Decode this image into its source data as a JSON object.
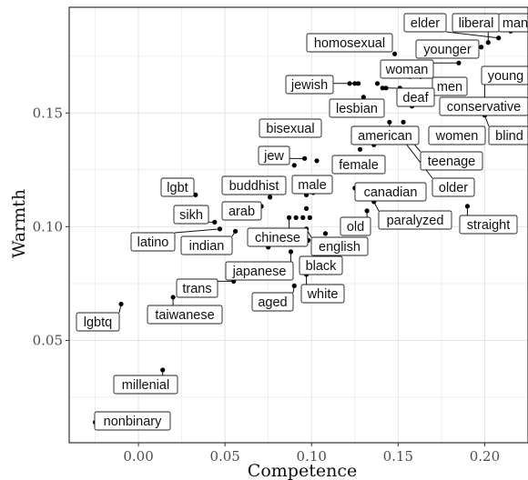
{
  "chart_data": {
    "type": "scatter",
    "title": "",
    "xlabel": "Competence",
    "ylabel": "Warmth",
    "xlim": [
      -0.04,
      0.225
    ],
    "ylim": [
      0.005,
      0.1965
    ],
    "x_ticks": [
      "0.00",
      "0.05",
      "0.10",
      "0.15",
      "0.20"
    ],
    "x_tick_values": [
      0.0,
      0.05,
      0.1,
      0.15,
      0.2
    ],
    "y_ticks": [
      "0.05",
      "0.10",
      "0.15"
    ],
    "y_tick_values": [
      0.05,
      0.1,
      0.15
    ],
    "grid": true,
    "background": "#ffffff",
    "grid_color": "#e5e5e5",
    "panel_border_color": "#333333",
    "point_color": "#000000",
    "points": [
      {
        "label": "elder",
        "x": 0.208,
        "y": 0.183
      },
      {
        "label": "liberal",
        "x": 0.202,
        "y": 0.181
      },
      {
        "label": "man",
        "x": 0.215,
        "y": 0.186
      },
      {
        "label": "homosexual",
        "x": 0.148,
        "y": 0.176
      },
      {
        "label": "younger",
        "x": 0.198,
        "y": 0.179
      },
      {
        "label": "woman",
        "x": 0.185,
        "y": 0.172
      },
      {
        "label": "young",
        "x": 0.212,
        "y": 0.169
      },
      {
        "label": "jewish",
        "x": 0.125,
        "y": 0.163
      },
      {
        "label": "men",
        "x": 0.163,
        "y": 0.166
      },
      {
        "label": "deaf",
        "x": 0.141,
        "y": 0.161
      },
      {
        "label": "lesbian",
        "x": 0.133,
        "y": 0.155
      },
      {
        "label": "conservative",
        "x": 0.2,
        "y": 0.164
      },
      {
        "label": "bisexual",
        "x": 0.099,
        "y": 0.141
      },
      {
        "label": "american",
        "x": 0.145,
        "y": 0.146
      },
      {
        "label": "women",
        "x": 0.172,
        "y": 0.141
      },
      {
        "label": "blind",
        "x": 0.2,
        "y": 0.149
      },
      {
        "label": "jew",
        "x": 0.096,
        "y": 0.13
      },
      {
        "label": "teenage",
        "x": 0.154,
        "y": 0.141
      },
      {
        "label": "female",
        "x": 0.116,
        "y": 0.13
      },
      {
        "label": "older",
        "x": 0.154,
        "y": 0.137
      },
      {
        "label": "lgbt",
        "x": 0.033,
        "y": 0.114
      },
      {
        "label": "buddhist",
        "x": 0.076,
        "y": 0.113
      },
      {
        "label": "male",
        "x": 0.101,
        "y": 0.115
      },
      {
        "label": "canadian",
        "x": 0.125,
        "y": 0.117
      },
      {
        "label": "sikh",
        "x": 0.044,
        "y": 0.102
      },
      {
        "label": "arab",
        "x": 0.071,
        "y": 0.109
      },
      {
        "label": "old",
        "x": 0.132,
        "y": 0.107
      },
      {
        "label": "paralyzed",
        "x": 0.136,
        "y": 0.111
      },
      {
        "label": "straight",
        "x": 0.19,
        "y": 0.109
      },
      {
        "label": "chinese",
        "x": 0.087,
        "y": 0.104
      },
      {
        "label": "latino",
        "x": 0.047,
        "y": 0.099
      },
      {
        "label": "indian",
        "x": 0.056,
        "y": 0.098
      },
      {
        "label": "english",
        "x": 0.097,
        "y": 0.099
      },
      {
        "label": "japanese",
        "x": 0.088,
        "y": 0.089
      },
      {
        "label": "black",
        "x": 0.099,
        "y": 0.082
      },
      {
        "label": "trans",
        "x": 0.055,
        "y": 0.076
      },
      {
        "label": "aged",
        "x": 0.09,
        "y": 0.074
      },
      {
        "label": "white",
        "x": 0.097,
        "y": 0.079
      },
      {
        "label": "taiwanese",
        "x": 0.02,
        "y": 0.069
      },
      {
        "label": "lgbtq",
        "x": -0.01,
        "y": 0.066
      },
      {
        "label": "millenial",
        "x": 0.014,
        "y": 0.037
      },
      {
        "label": "nonbinary",
        "x": -0.025,
        "y": 0.014
      }
    ],
    "extra_points": [
      {
        "x": 0.122,
        "y": 0.163
      },
      {
        "x": 0.127,
        "y": 0.163
      },
      {
        "x": 0.138,
        "y": 0.163
      },
      {
        "x": 0.151,
        "y": 0.161
      },
      {
        "x": 0.157,
        "y": 0.166
      },
      {
        "x": 0.13,
        "y": 0.157
      },
      {
        "x": 0.166,
        "y": 0.159
      },
      {
        "x": 0.135,
        "y": 0.149
      },
      {
        "x": 0.158,
        "y": 0.153
      },
      {
        "x": 0.124,
        "y": 0.14
      },
      {
        "x": 0.153,
        "y": 0.146
      },
      {
        "x": 0.128,
        "y": 0.134
      },
      {
        "x": 0.16,
        "y": 0.14
      },
      {
        "x": 0.136,
        "y": 0.136
      },
      {
        "x": 0.128,
        "y": 0.129
      },
      {
        "x": 0.14,
        "y": 0.125
      },
      {
        "x": 0.09,
        "y": 0.127
      },
      {
        "x": 0.103,
        "y": 0.129
      },
      {
        "x": 0.103,
        "y": 0.12
      },
      {
        "x": 0.097,
        "y": 0.114
      },
      {
        "x": 0.091,
        "y": 0.104
      },
      {
        "x": 0.095,
        "y": 0.104
      },
      {
        "x": 0.093,
        "y": 0.098
      },
      {
        "x": 0.098,
        "y": 0.094
      },
      {
        "x": 0.075,
        "y": 0.091
      },
      {
        "x": 0.099,
        "y": 0.104
      },
      {
        "x": 0.097,
        "y": 0.108
      },
      {
        "x": 0.137,
        "y": 0.117
      },
      {
        "x": 0.108,
        "y": 0.097
      },
      {
        "x": 0.143,
        "y": 0.161
      }
    ]
  }
}
